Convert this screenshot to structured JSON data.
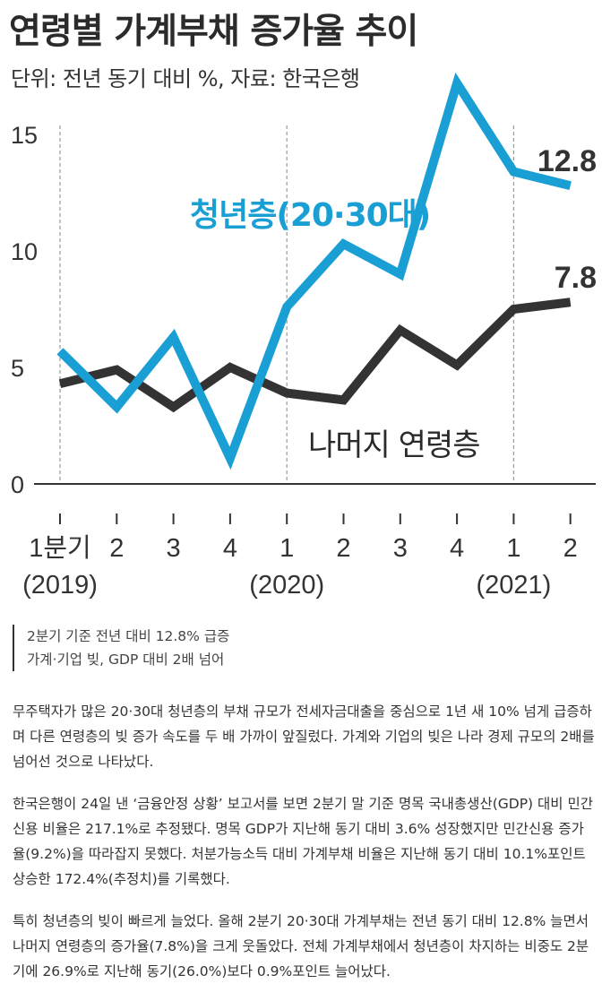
{
  "header": {
    "title": "연령별 가계부채 증가율 추이",
    "subtitle": "단위: 전년 동기 대비 %, 자료: 한국은행"
  },
  "chart_data": {
    "type": "line",
    "title": "연령별 가계부채 증가율 추이",
    "subtitle": "단위: 전년 동기 대비 %, 자료: 한국은행",
    "x": [
      "1분기",
      "2",
      "3",
      "4",
      "1",
      "2",
      "3",
      "4",
      "1",
      "2"
    ],
    "year_labels": [
      {
        "index": 0,
        "label": "(2019)"
      },
      {
        "index": 4,
        "label": "(2020)"
      },
      {
        "index": 8,
        "label": "(2021)"
      }
    ],
    "y_ticks": [
      0,
      5,
      10,
      15
    ],
    "ylim": [
      0,
      16.5
    ],
    "series": [
      {
        "name": "청년층(20·30대)",
        "color": "#1a9fd4",
        "values": [
          5.7,
          3.3,
          6.3,
          1.1,
          7.6,
          10.3,
          9.0,
          17.2,
          13.4,
          12.8
        ],
        "end_label": "12.8"
      },
      {
        "name": "나머지 연령층",
        "color": "#333333",
        "values": [
          4.3,
          4.9,
          3.3,
          5.0,
          3.9,
          3.6,
          6.6,
          5.1,
          7.5,
          7.8
        ],
        "end_label": "7.8"
      }
    ],
    "grid": false,
    "dashed_markers_at": [
      0,
      4,
      8
    ]
  },
  "summary": {
    "line1": "2분기 기준 전년 대비 12.8% 급증",
    "line2": "가계·기업 빚, GDP 대비 2배 넘어"
  },
  "article": {
    "p1": "무주택자가 많은 20·30대 청년층의 부채 규모가 전세자금대출을 중심으로 1년 새 10% 넘게 급증하며 다른 연령층의 빚 증가 속도를 두 배 가까이 앞질렀다. 가계와 기업의 빚은 나라 경제 규모의 2배를 넘어선 것으로 나타났다.",
    "p2": "한국은행이 24일 낸 ‘금융안정 상황’ 보고서를 보면 2분기 말 기준 명목 국내총생산(GDP) 대비 민간신용 비율은 217.1%로 추정됐다. 명목 GDP가 지난해 동기 대비 3.6% 성장했지만 민간신용 증가율(9.2%)을 따라잡지 못했다. 처분가능소득 대비 가계부채 비율은 지난해 동기 대비 10.1%포인트 상승한 172.4%(추정치)를 기록했다.",
    "p3": "특히 청년층의 빚이 빠르게 늘었다. 올해 2분기 20·30대 가계부채는 전년 동기 대비 12.8% 늘면서 나머지 연령층의 증가율(7.8%)을 크게 웃돌았다. 전체 가계부채에서 청년층이 차지하는 비중도 2분기에 26.9%로 지난해 동기(26.0%)보다 0.9%포인트 늘어났다."
  }
}
